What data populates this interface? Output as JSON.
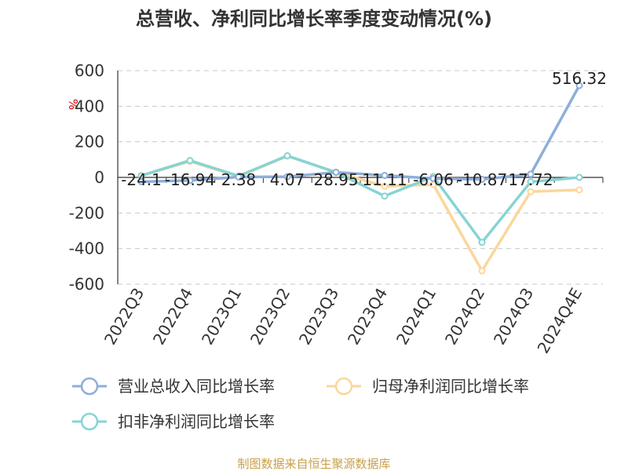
{
  "chart_data": {
    "type": "line",
    "title": "总营收、净利同比增长率季度变动情况(%)",
    "ylabel": "%",
    "ylim": [
      -600,
      600
    ],
    "yticks": [
      "600",
      "400",
      "200",
      "0",
      "-200",
      "-400",
      "-600"
    ],
    "ytick_values": [
      600,
      400,
      200,
      0,
      -200,
      -400,
      -600
    ],
    "categories": [
      "2022Q3",
      "2022Q4",
      "2023Q1",
      "2023Q2",
      "2023Q3",
      "2023Q4",
      "2024Q1",
      "2024Q2",
      "2024Q3",
      "2024Q4E"
    ],
    "grid": true,
    "legend_position": "bottom",
    "series": [
      {
        "name": "营业总收入同比增长率",
        "color": "#8eaedb",
        "values": [
          -24.1,
          -16.94,
          2.38,
          4.07,
          28.95,
          11.11,
          -6.06,
          -10.87,
          17.72,
          516.32
        ],
        "labels": [
          "-24.1",
          "-16.94",
          "2.38",
          "4.07",
          "28.95",
          "11.11",
          "-6.06",
          "-10.87",
          "17.72",
          "516.32"
        ]
      },
      {
        "name": "归母净利润同比增长率",
        "color": "#fad79b",
        "values": [
          10,
          90,
          5,
          120,
          30,
          -50,
          -40,
          -525,
          -80,
          -70
        ]
      },
      {
        "name": "扣非净利润同比增长率",
        "color": "#86d4d4",
        "values": [
          10,
          95,
          8,
          122,
          28,
          -105,
          5,
          -365,
          -25,
          0
        ]
      }
    ]
  },
  "footer": {
    "source": "制图数据来自恒生聚源数据库"
  }
}
